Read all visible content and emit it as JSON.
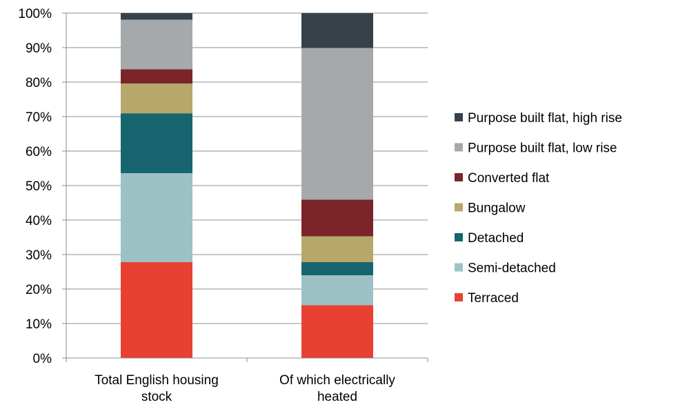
{
  "chart_data": {
    "type": "bar",
    "stacked": true,
    "percent_stacked": true,
    "categories": [
      [
        "Total English housing",
        "stock"
      ],
      [
        "Of which electrically",
        "heated"
      ]
    ],
    "series": [
      {
        "name": "Terraced",
        "color": "#e84133",
        "values": [
          27.8,
          15.3
        ]
      },
      {
        "name": "Semi-detached",
        "color": "#9cc2c5",
        "values": [
          25.8,
          8.7
        ]
      },
      {
        "name": "Detached",
        "color": "#17656f",
        "values": [
          17.3,
          3.8
        ]
      },
      {
        "name": "Bungalow",
        "color": "#b7a76b",
        "values": [
          8.7,
          7.5
        ]
      },
      {
        "name": "Converted flat",
        "color": "#7b2528",
        "values": [
          4.1,
          10.6
        ]
      },
      {
        "name": "Purpose built flat, low rise",
        "color": "#a6a9ab",
        "values": [
          14.4,
          44.0
        ]
      },
      {
        "name": "Purpose built flat, high rise",
        "color": "#37414a",
        "values": [
          1.9,
          10.1
        ]
      }
    ],
    "y_ticks": [
      "0%",
      "10%",
      "20%",
      "30%",
      "40%",
      "50%",
      "60%",
      "70%",
      "80%",
      "90%",
      "100%"
    ],
    "ylim": [
      0,
      100
    ],
    "grid": true,
    "legend": {
      "position": "right",
      "order": "reversed"
    }
  }
}
